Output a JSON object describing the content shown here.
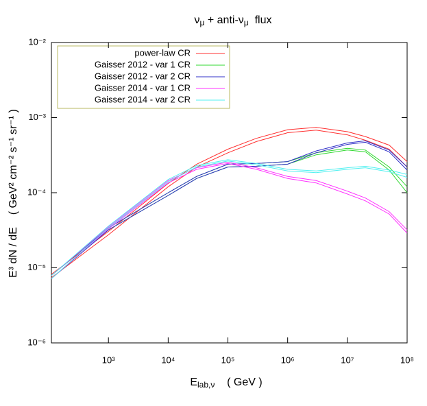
{
  "chart_data": {
    "type": "line",
    "title": [
      "ν",
      "μ",
      " + anti-ν",
      "μ",
      "  flux"
    ],
    "x_label": [
      "E",
      "lab,ν",
      "    ( GeV )"
    ],
    "y_label": "E³ dN / dE    ( GeV² cm⁻² s⁻¹ sr⁻¹ )",
    "x": [
      111,
      1000,
      10000,
      30000,
      100000,
      300000,
      1000000,
      3000000,
      10000000,
      20000000,
      50000000,
      100000000
    ],
    "series": [
      {
        "name": "power-law CR",
        "color": "#ff3030",
        "upper": [
          8.2e-06,
          3.05e-05,
          0.000133,
          0.00024,
          0.00038,
          0.00053,
          0.00069,
          0.00074,
          0.00065,
          0.00056,
          0.00043,
          0.00026
        ],
        "lower": [
          7.4e-06,
          2.75e-05,
          0.00012,
          0.00022,
          0.00034,
          0.00048,
          0.00063,
          0.00068,
          0.00059,
          0.0005,
          0.00038,
          0.00022
        ]
      },
      {
        "name": "Gaisser 2012 - var 1 CR",
        "color": "#30d830",
        "upper": [
          7.9e-06,
          3.4e-05,
          0.0001,
          0.000165,
          0.00024,
          0.000245,
          0.00026,
          0.00034,
          0.00039,
          0.00037,
          0.00022,
          0.00012
        ],
        "lower": [
          7.2e-06,
          3.2e-05,
          9.2e-05,
          0.000155,
          0.00022,
          0.000225,
          0.00024,
          0.00032,
          0.00037,
          0.00035,
          0.0002,
          0.0001
        ]
      },
      {
        "name": "Gaisser 2012 - var 2 CR",
        "color": "#3030c8",
        "upper": [
          7.9e-06,
          3.4e-05,
          0.0001,
          0.000165,
          0.00024,
          0.000245,
          0.00026,
          0.00036,
          0.00046,
          0.00049,
          0.00037,
          0.00022
        ],
        "lower": [
          7.2e-06,
          3.2e-05,
          9.2e-05,
          0.000155,
          0.00022,
          0.000225,
          0.00024,
          0.00034,
          0.00044,
          0.00047,
          0.00035,
          0.0002
        ]
      },
      {
        "name": "Gaisser 2014 - var 1 CR",
        "color": "#ff30ff",
        "upper": [
          7.9e-06,
          3.5e-05,
          0.000145,
          0.000215,
          0.000255,
          0.000215,
          0.000165,
          0.000145,
          0.000105,
          8.5e-05,
          5.6e-05,
          3.2e-05
        ],
        "lower": [
          7.2e-06,
          3.3e-05,
          0.000135,
          0.000205,
          0.000245,
          0.000205,
          0.000155,
          0.000135,
          9.6e-05,
          7.8e-05,
          5.2e-05,
          2.9e-05
        ]
      },
      {
        "name": "Gaisser 2014 - var 2 CR",
        "color": "#50f0f0",
        "upper": [
          7.9e-06,
          3.6e-05,
          0.00015,
          0.00023,
          0.000275,
          0.000245,
          0.000205,
          0.000195,
          0.000215,
          0.000225,
          0.0002,
          0.000175
        ],
        "lower": [
          7.2e-06,
          3.4e-05,
          0.00014,
          0.00022,
          0.000265,
          0.000235,
          0.000195,
          0.000185,
          0.000205,
          0.000215,
          0.00019,
          0.00016
        ]
      }
    ],
    "xlim": [
      111,
      100000000
    ],
    "ylim": [
      1e-06,
      0.01
    ],
    "log_x": true,
    "log_y": true,
    "xticks": [
      {
        "value": 1000,
        "label": "10³"
      },
      {
        "value": 10000,
        "label": "10⁴"
      },
      {
        "value": 100000,
        "label": "10⁵"
      },
      {
        "value": 1000000,
        "label": "10⁶"
      },
      {
        "value": 10000000,
        "label": "10⁷"
      },
      {
        "value": 100000000,
        "label": "10⁸"
      }
    ],
    "yticks": [
      {
        "value": 1e-06,
        "label": "10⁻⁶"
      },
      {
        "value": 1e-05,
        "label": "10⁻⁵"
      },
      {
        "value": 0.0001,
        "label": "10⁻⁴"
      },
      {
        "value": 0.001,
        "label": "10⁻³"
      },
      {
        "value": 0.01,
        "label": "10⁻²"
      }
    ],
    "legend": "top-left"
  }
}
